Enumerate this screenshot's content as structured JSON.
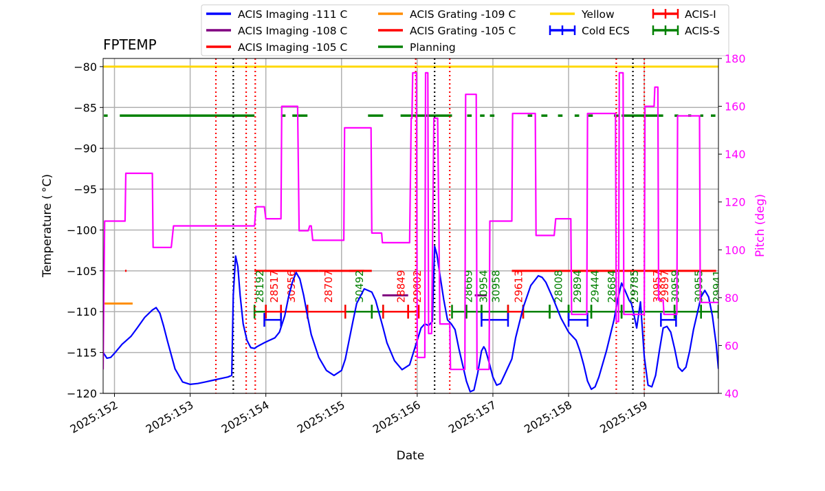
{
  "chart_data": {
    "type": "line",
    "title": "FPTEMP",
    "xlabel": "Date",
    "ylabel": "Temperature ($^\\circ$C)",
    "ylabel_display": "Temperature ( °C)",
    "y2label": "Pitch (deg)",
    "xlim": [
      151.85,
      159.98
    ],
    "ylim": [
      -120,
      -79
    ],
    "y2lim": [
      40,
      180
    ],
    "xticks": [
      {
        "v": 152,
        "label": "2025:152"
      },
      {
        "v": 153,
        "label": "2025:153"
      },
      {
        "v": 154,
        "label": "2025:154"
      },
      {
        "v": 155,
        "label": "2025:155"
      },
      {
        "v": 156,
        "label": "2025:156"
      },
      {
        "v": 157,
        "label": "2025:157"
      },
      {
        "v": 158,
        "label": "2025:158"
      },
      {
        "v": 159,
        "label": "2025:159"
      }
    ],
    "yticks": [
      {
        "v": -80,
        "label": "−80"
      },
      {
        "v": -85,
        "label": "−85"
      },
      {
        "v": -90,
        "label": "−90"
      },
      {
        "v": -95,
        "label": "−95"
      },
      {
        "v": -100,
        "label": "−100"
      },
      {
        "v": -105,
        "label": "−105"
      },
      {
        "v": -110,
        "label": "−110"
      },
      {
        "v": -115,
        "label": "−115"
      },
      {
        "v": -120,
        "label": "−120"
      }
    ],
    "y2ticks": [
      {
        "v": 40,
        "label": "40"
      },
      {
        "v": 60,
        "label": "60"
      },
      {
        "v": 80,
        "label": "80"
      },
      {
        "v": 100,
        "label": "100"
      },
      {
        "v": 120,
        "label": "120"
      },
      {
        "v": 140,
        "label": "140"
      },
      {
        "v": 160,
        "label": "160"
      },
      {
        "v": 180,
        "label": "180"
      }
    ],
    "grid": true,
    "legend_position": "top",
    "colors": {
      "temperature": "#0000ff",
      "pitch": "#ff00ff",
      "yellow": "#ffd700",
      "planning": "#008000",
      "acis_i": "#ff0000",
      "acis_s": "#008000",
      "imaging_108": "#800080",
      "grating_109": "#ff8c00",
      "red": "#ff0000",
      "black": "#000000",
      "grid": "#b0b0b0"
    },
    "legend": [
      {
        "label": "ACIS Imaging -111 C",
        "color": "#0000ff",
        "kind": "line"
      },
      {
        "label": "ACIS Imaging -108 C",
        "color": "#800080",
        "kind": "line"
      },
      {
        "label": "ACIS Imaging -105 C",
        "color": "#ff0000",
        "kind": "line"
      },
      {
        "label": "ACIS Grating -109 C",
        "color": "#ff8c00",
        "kind": "line"
      },
      {
        "label": "ACIS Grating -105 C",
        "color": "#ff0000",
        "kind": "line"
      },
      {
        "label": "Planning",
        "color": "#008000",
        "kind": "line"
      },
      {
        "label": "Yellow",
        "color": "#ffd700",
        "kind": "line"
      },
      {
        "label": "Cold ECS",
        "color": "#0000ff",
        "kind": "errorbar"
      },
      {
        "label": "ACIS-I",
        "color": "#ff0000",
        "kind": "errorbar"
      },
      {
        "label": "ACIS-S",
        "color": "#008000",
        "kind": "errorbar"
      }
    ],
    "yellow_limit": -80,
    "planning_limit": {
      "y": -86,
      "segments": [
        [
          151.86,
          151.91
        ],
        [
          152.07,
          153.85
        ],
        [
          154.2,
          154.26
        ],
        [
          154.35,
          154.55
        ],
        [
          155.35,
          155.55
        ],
        [
          155.78,
          156.46
        ],
        [
          156.66,
          156.72
        ],
        [
          156.83,
          156.89
        ],
        [
          156.96,
          157.02
        ],
        [
          157.46,
          157.52
        ],
        [
          157.64,
          157.72
        ],
        [
          157.86,
          157.92
        ],
        [
          158.08,
          158.14
        ],
        [
          158.26,
          158.32
        ],
        [
          158.6,
          158.66
        ],
        [
          158.7,
          159.25
        ],
        [
          159.4,
          159.45
        ],
        [
          159.58,
          159.62
        ],
        [
          159.74,
          159.78
        ],
        [
          159.88,
          159.94
        ]
      ]
    },
    "grating_109_limit": {
      "y": -109,
      "segments": [
        [
          151.85,
          152.24
        ]
      ]
    },
    "imaging_105_limit": {
      "y": -105,
      "segments": [
        [
          152.14,
          152.16
        ],
        [
          153.85,
          154.7
        ],
        [
          155.1,
          155.3
        ],
        [
          157.25,
          159.95
        ]
      ]
    },
    "grating_105_limit": {
      "y": -105,
      "segments": [
        [
          154.7,
          155.4
        ]
      ]
    },
    "imaging_108_limit": {
      "y": -108,
      "segments": [
        [
          155.54,
          155.88
        ],
        [
          156.76,
          156.92
        ]
      ]
    },
    "cold_ecs": {
      "y": -111,
      "segments": [
        [
          153.98,
          154.2
        ],
        [
          156.85,
          157.2
        ],
        [
          158.0,
          158.25
        ],
        [
          159.22,
          159.42
        ]
      ]
    },
    "acis_i": {
      "y": -110,
      "segments": [
        [
          154.0,
          154.2
        ],
        [
          154.2,
          154.55
        ],
        [
          154.55,
          155.05
        ],
        [
          155.55,
          155.88
        ],
        [
          155.88,
          156.02
        ],
        [
          157.2,
          157.4
        ]
      ]
    },
    "acis_s": {
      "y": -110,
      "segments": [
        [
          153.85,
          154.0
        ],
        [
          155.05,
          155.4
        ],
        [
          155.4,
          155.55
        ],
        [
          156.46,
          156.65
        ],
        [
          156.65,
          156.85
        ],
        [
          156.85,
          157.2
        ],
        [
          157.4,
          157.75
        ],
        [
          157.75,
          158.0
        ],
        [
          158.0,
          158.3
        ],
        [
          158.3,
          158.7
        ],
        [
          158.7,
          159.4
        ],
        [
          159.4,
          159.75
        ],
        [
          159.75,
          159.98
        ]
      ]
    },
    "obsids": [
      {
        "x": 153.92,
        "label": "28192",
        "color": "#008000"
      },
      {
        "x": 154.11,
        "label": "28517",
        "color": "#ff0000"
      },
      {
        "x": 154.34,
        "label": "30956",
        "color": "#ff0000"
      },
      {
        "x": 154.83,
        "label": "28707",
        "color": "#ff0000"
      },
      {
        "x": 155.24,
        "label": "30492",
        "color": "#008000"
      },
      {
        "x": 155.79,
        "label": "28849",
        "color": "#ff0000"
      },
      {
        "x": 156.0,
        "label": "29002",
        "color": "#ff0000"
      },
      {
        "x": 156.68,
        "label": "28669",
        "color": "#008000"
      },
      {
        "x": 156.88,
        "label": "30954",
        "color": "#008000"
      },
      {
        "x": 157.04,
        "label": "30958",
        "color": "#008000"
      },
      {
        "x": 157.34,
        "label": "29613",
        "color": "#ff0000"
      },
      {
        "x": 157.87,
        "label": "28008",
        "color": "#008000"
      },
      {
        "x": 158.12,
        "label": "29894",
        "color": "#008000"
      },
      {
        "x": 158.35,
        "label": "29444",
        "color": "#008000"
      },
      {
        "x": 158.57,
        "label": "28684",
        "color": "#008000"
      },
      {
        "x": 158.87,
        "label": "29785",
        "color": "#008000"
      },
      {
        "x": 159.17,
        "label": "30957",
        "color": "#ff0000"
      },
      {
        "x": 159.27,
        "label": "29897",
        "color": "#ff0000"
      },
      {
        "x": 159.41,
        "label": "30959",
        "color": "#008000"
      },
      {
        "x": 159.72,
        "label": "30955",
        "color": "#008000"
      },
      {
        "x": 159.96,
        "label": "29941",
        "color": "#008000"
      }
    ],
    "vlines": [
      {
        "x": 153.34,
        "color": "#ff0000"
      },
      {
        "x": 153.74,
        "color": "#ff0000"
      },
      {
        "x": 153.86,
        "color": "#ff0000"
      },
      {
        "x": 155.98,
        "color": "#ff0000"
      },
      {
        "x": 156.43,
        "color": "#ff0000"
      },
      {
        "x": 158.63,
        "color": "#ff0000"
      },
      {
        "x": 159.0,
        "color": "#ff0000"
      },
      {
        "x": 153.57,
        "color": "#000000"
      },
      {
        "x": 156.23,
        "color": "#000000"
      },
      {
        "x": 158.85,
        "color": "#000000"
      }
    ],
    "series": [
      {
        "name": "FPTEMP",
        "axis": "left",
        "color": "#0000ff",
        "x": [
          151.85,
          151.9,
          151.95,
          152.0,
          152.1,
          152.22,
          152.3,
          152.4,
          152.5,
          152.55,
          152.6,
          152.65,
          152.7,
          152.8,
          152.9,
          153.0,
          153.1,
          153.2,
          153.3,
          153.4,
          153.5,
          153.55,
          153.57,
          153.6,
          153.63,
          153.66,
          153.7,
          153.75,
          153.8,
          153.85,
          153.88,
          153.92,
          153.98,
          154.05,
          154.12,
          154.18,
          154.25,
          154.3,
          154.35,
          154.4,
          154.45,
          154.5,
          154.55,
          154.6,
          154.7,
          154.8,
          154.9,
          155.0,
          155.05,
          155.1,
          155.15,
          155.2,
          155.3,
          155.4,
          155.45,
          155.5,
          155.55,
          155.6,
          155.7,
          155.8,
          155.9,
          156.0,
          156.05,
          156.1,
          156.15,
          156.2,
          156.23,
          156.26,
          156.3,
          156.35,
          156.4,
          156.45,
          156.5,
          156.55,
          156.6,
          156.65,
          156.7,
          156.75,
          156.8,
          156.85,
          156.88,
          156.9,
          156.95,
          157.0,
          157.05,
          157.1,
          157.15,
          157.2,
          157.25,
          157.3,
          157.4,
          157.5,
          157.6,
          157.65,
          157.7,
          157.8,
          157.9,
          158.0,
          158.05,
          158.1,
          158.15,
          158.2,
          158.25,
          158.3,
          158.35,
          158.4,
          158.5,
          158.6,
          158.65,
          158.7,
          158.75,
          158.8,
          158.83,
          158.86,
          158.9,
          158.95,
          159.0,
          159.05,
          159.1,
          159.15,
          159.2,
          159.25,
          159.3,
          159.35,
          159.4,
          159.45,
          159.5,
          159.55,
          159.6,
          159.65,
          159.7,
          159.75,
          159.8,
          159.85,
          159.9,
          159.95,
          159.98
        ],
        "y": [
          -115.0,
          -115.7,
          -115.6,
          -115.1,
          -114.0,
          -113.0,
          -112.0,
          -110.7,
          -109.8,
          -109.5,
          -110.2,
          -111.8,
          -113.6,
          -117.0,
          -118.6,
          -118.9,
          -118.8,
          -118.6,
          -118.4,
          -118.2,
          -118.0,
          -117.8,
          -108.0,
          -103.2,
          -104.5,
          -108.0,
          -111.5,
          -113.5,
          -114.4,
          -114.5,
          -114.3,
          -114.1,
          -113.8,
          -113.5,
          -113.2,
          -112.5,
          -110.5,
          -108.2,
          -106.4,
          -105.2,
          -106.0,
          -108.0,
          -110.5,
          -112.8,
          -115.6,
          -117.2,
          -117.8,
          -117.2,
          -115.8,
          -113.5,
          -111.2,
          -109.0,
          -107.2,
          -107.6,
          -108.6,
          -110.3,
          -112.0,
          -113.8,
          -116.0,
          -117.1,
          -116.5,
          -113.5,
          -112.0,
          -111.5,
          -111.7,
          -111.2,
          -102.0,
          -103.0,
          -105.5,
          -108.5,
          -111.0,
          -111.5,
          -112.2,
          -114.5,
          -116.5,
          -118.5,
          -119.8,
          -119.6,
          -117.5,
          -114.8,
          -114.3,
          -114.6,
          -116.2,
          -118.0,
          -119.0,
          -118.8,
          -117.8,
          -116.8,
          -115.8,
          -113.2,
          -109.5,
          -106.8,
          -105.6,
          -105.8,
          -106.4,
          -108.5,
          -110.8,
          -112.5,
          -113.0,
          -113.5,
          -114.8,
          -116.5,
          -118.5,
          -119.5,
          -119.2,
          -118.0,
          -114.8,
          -111.0,
          -108.5,
          -106.5,
          -107.5,
          -108.6,
          -109.0,
          -110.2,
          -112.0,
          -108.8,
          -115.5,
          -119.0,
          -119.2,
          -117.8,
          -114.8,
          -112.0,
          -111.8,
          -112.5,
          -114.5,
          -116.8,
          -117.3,
          -116.8,
          -114.8,
          -112.2,
          -110.2,
          -108.2,
          -107.4,
          -108.2,
          -110.5,
          -114.0,
          -117.0
        ]
      },
      {
        "name": "Pitch",
        "axis": "right",
        "color": "#ff00ff",
        "x": [
          151.85,
          151.87,
          152.14,
          152.15,
          152.5,
          152.51,
          152.75,
          152.78,
          153.85,
          153.87,
          153.98,
          154.0,
          154.2,
          154.21,
          154.42,
          154.44,
          154.56,
          154.58,
          154.6,
          154.62,
          155.03,
          155.04,
          155.39,
          155.4,
          155.53,
          155.54,
          155.9,
          155.92,
          155.93,
          155.94,
          155.99,
          156.0,
          156.1,
          156.11,
          156.14,
          156.15,
          156.19,
          156.22,
          156.27,
          156.3,
          156.43,
          156.44,
          156.63,
          156.64,
          156.78,
          156.79,
          156.95,
          156.96,
          157.25,
          157.26,
          157.56,
          157.57,
          157.81,
          157.83,
          158.03,
          158.04,
          158.24,
          158.25,
          158.62,
          158.63,
          158.66,
          158.67,
          158.72,
          158.73,
          158.85,
          158.86,
          159.0,
          159.01,
          159.13,
          159.14,
          159.18,
          159.19,
          159.25,
          159.26,
          159.43,
          159.44,
          159.73,
          159.74,
          159.98
        ],
        "y": [
          50,
          112,
          112,
          132,
          132,
          101,
          101,
          110,
          110,
          118,
          118,
          113,
          113,
          160,
          160,
          108,
          108,
          110,
          110,
          104,
          104,
          151,
          151,
          107,
          107,
          103,
          103,
          155,
          155,
          174,
          174,
          55,
          55,
          174,
          174,
          65,
          65,
          155,
          155,
          69,
          69,
          50,
          50,
          165,
          165,
          50,
          50,
          112,
          112,
          157,
          157,
          106,
          106,
          113,
          113,
          73,
          73,
          157,
          157,
          70,
          70,
          174,
          174,
          73,
          73,
          73,
          73,
          160,
          160,
          168,
          168,
          79,
          79,
          73,
          73,
          156,
          156,
          78,
          78
        ]
      }
    ]
  }
}
